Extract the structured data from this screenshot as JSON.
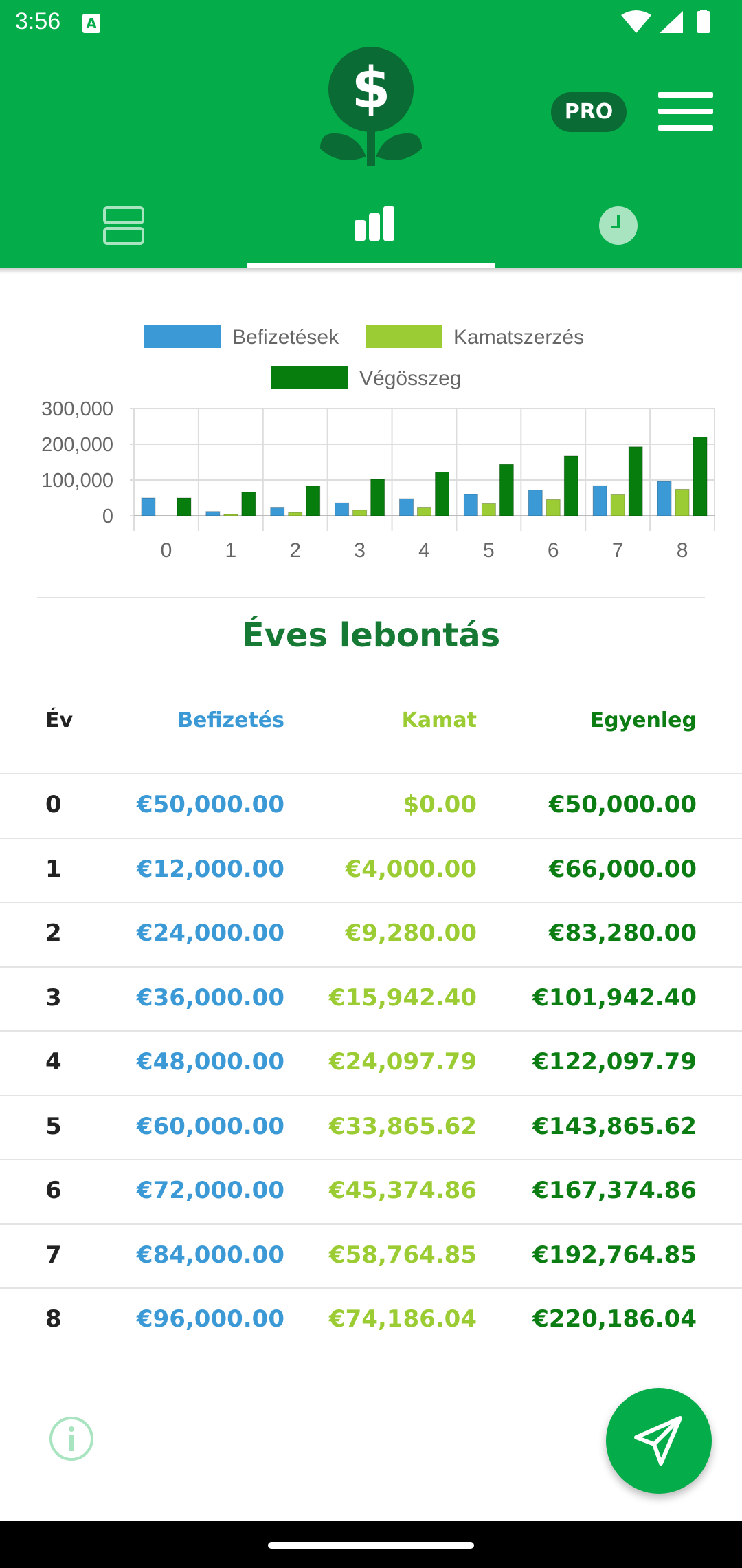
{
  "status_bar": {
    "time": "3:56",
    "notification_icon": "a-icon",
    "icons": [
      "wifi-icon",
      "signal-icon",
      "battery-icon"
    ]
  },
  "header": {
    "logo_icon": "dollar-plant-icon",
    "pro_label": "PRO",
    "menu_icon": "hamburger-menu-icon",
    "colors": {
      "primary": "#04ac4a",
      "dark": "#0b6b34"
    }
  },
  "tabs": [
    {
      "icon": "list-rows-icon",
      "active": false
    },
    {
      "icon": "bar-chart-icon",
      "active": true
    },
    {
      "icon": "clock-icon",
      "active": false
    }
  ],
  "chart_data": {
    "type": "bar",
    "categories": [
      "0",
      "1",
      "2",
      "3",
      "4",
      "5",
      "6",
      "7",
      "8"
    ],
    "series": [
      {
        "name": "Befizetések",
        "color": "#3b99d6",
        "values": [
          50000,
          12000,
          24000,
          36000,
          48000,
          60000,
          72000,
          84000,
          96000
        ]
      },
      {
        "name": "Kamatszerzés",
        "color": "#9ccc34",
        "values": [
          0,
          4000,
          9280,
          15942.4,
          24097.79,
          33865.62,
          45374.86,
          58764.85,
          74186.04
        ]
      },
      {
        "name": "Végösszeg",
        "color": "#067d0c",
        "values": [
          50000,
          66000,
          83280,
          101942.4,
          122097.79,
          143865.62,
          167374.86,
          192764.85,
          220186.04
        ]
      }
    ],
    "yticks": [
      "300,000",
      "200,000",
      "100,000",
      "0"
    ],
    "ylim": [
      0,
      300000
    ],
    "grid": true,
    "legend": "top-center"
  },
  "breakdown": {
    "title": "Éves lebontás",
    "headers": {
      "year": "Év",
      "payment": "Befizetés",
      "interest": "Kamat",
      "balance": "Egyenleg"
    },
    "rows": [
      {
        "year": "0",
        "payment": "€50,000.00",
        "interest": "$0.00",
        "balance": "€50,000.00"
      },
      {
        "year": "1",
        "payment": "€12,000.00",
        "interest": "€4,000.00",
        "balance": "€66,000.00"
      },
      {
        "year": "2",
        "payment": "€24,000.00",
        "interest": "€9,280.00",
        "balance": "€83,280.00"
      },
      {
        "year": "3",
        "payment": "€36,000.00",
        "interest": "€15,942.40",
        "balance": "€101,942.40"
      },
      {
        "year": "4",
        "payment": "€48,000.00",
        "interest": "€24,097.79",
        "balance": "€122,097.79"
      },
      {
        "year": "5",
        "payment": "€60,000.00",
        "interest": "€33,865.62",
        "balance": "€143,865.62"
      },
      {
        "year": "6",
        "payment": "€72,000.00",
        "interest": "€45,374.86",
        "balance": "€167,374.86"
      },
      {
        "year": "7",
        "payment": "€84,000.00",
        "interest": "€58,764.85",
        "balance": "€192,764.85"
      },
      {
        "year": "8",
        "payment": "€96,000.00",
        "interest": "€74,186.04",
        "balance": "€220,186.04"
      }
    ]
  },
  "footer": {
    "info_icon": "info-icon",
    "send_icon": "send-icon"
  }
}
